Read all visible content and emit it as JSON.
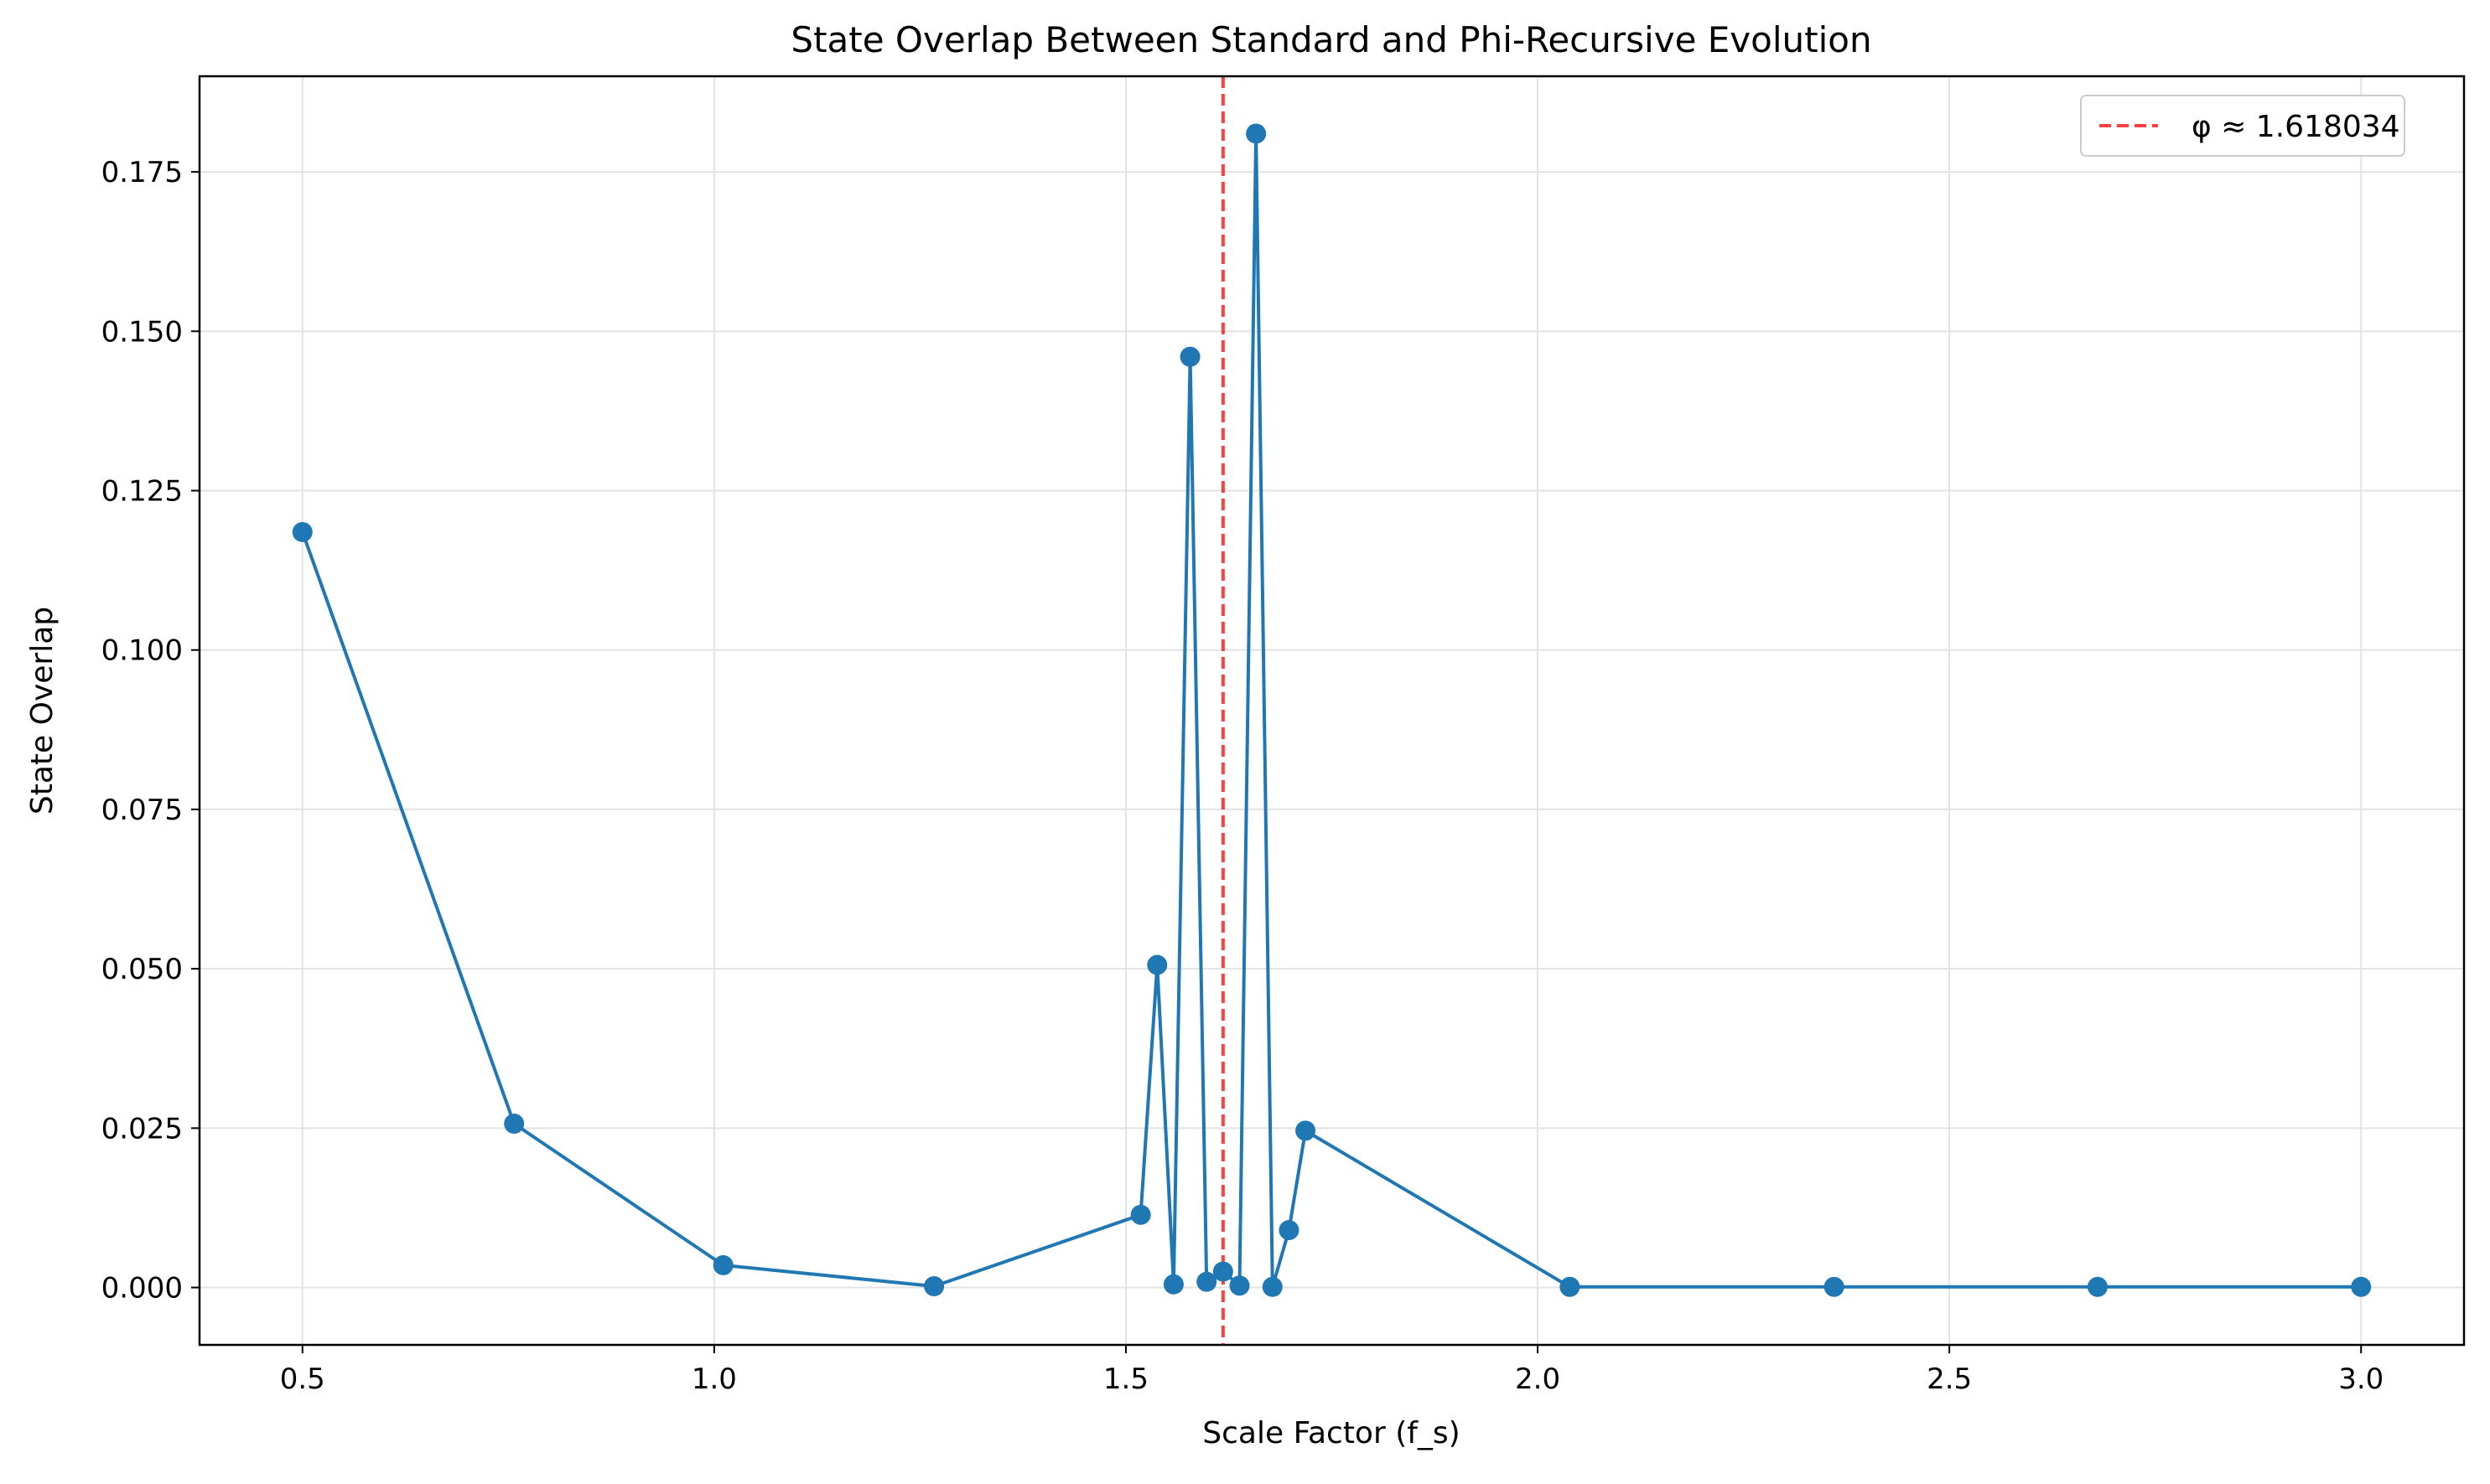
{
  "colors": {
    "series": "#1f77b4",
    "reference_line": "#ff0000",
    "grid": "#e3e3e3",
    "axes": "#000000",
    "background": "#ffffff"
  },
  "chart_data": {
    "type": "line",
    "title": "State Overlap Between Standard and Phi-Recursive Evolution",
    "xlabel": "Scale Factor (f_s)",
    "ylabel": "State Overlap",
    "xlim": [
      0.375,
      3.125
    ],
    "ylim": [
      -0.009,
      0.19
    ],
    "grid": true,
    "legend_position": "top-right",
    "x_ticks": [
      {
        "value": 0.5,
        "label": "0.5"
      },
      {
        "value": 1.0,
        "label": "1.0"
      },
      {
        "value": 1.5,
        "label": "1.5"
      },
      {
        "value": 2.0,
        "label": "2.0"
      },
      {
        "value": 2.5,
        "label": "2.5"
      },
      {
        "value": 3.0,
        "label": "3.0"
      }
    ],
    "y_ticks": [
      {
        "value": 0.0,
        "label": "0.000"
      },
      {
        "value": 0.025,
        "label": "0.025"
      },
      {
        "value": 0.05,
        "label": "0.050"
      },
      {
        "value": 0.075,
        "label": "0.075"
      },
      {
        "value": 0.1,
        "label": "0.100"
      },
      {
        "value": 0.125,
        "label": "0.125"
      },
      {
        "value": 0.15,
        "label": "0.150"
      },
      {
        "value": 0.175,
        "label": "0.175"
      }
    ],
    "series": [
      {
        "marker": "circle",
        "x": [
          0.5,
          0.757,
          1.011,
          1.267,
          1.518,
          1.538,
          1.558,
          1.578,
          1.598,
          1.618,
          1.638,
          1.658,
          1.678,
          1.698,
          1.718,
          2.039,
          2.36,
          2.68,
          3.0
        ],
        "y": [
          0.1185,
          0.0257,
          0.0035,
          0.0002,
          0.0114,
          0.0506,
          0.0005,
          0.146,
          0.0009,
          0.0025,
          0.0003,
          0.181,
          0.0001,
          0.009,
          0.0246,
          0.0001,
          0.0001,
          0.0001,
          0.0001
        ]
      }
    ],
    "reference_lines": [
      {
        "orientation": "vertical",
        "x": 1.618034,
        "style": "dashed",
        "label": "φ ≈ 1.618034"
      }
    ]
  }
}
